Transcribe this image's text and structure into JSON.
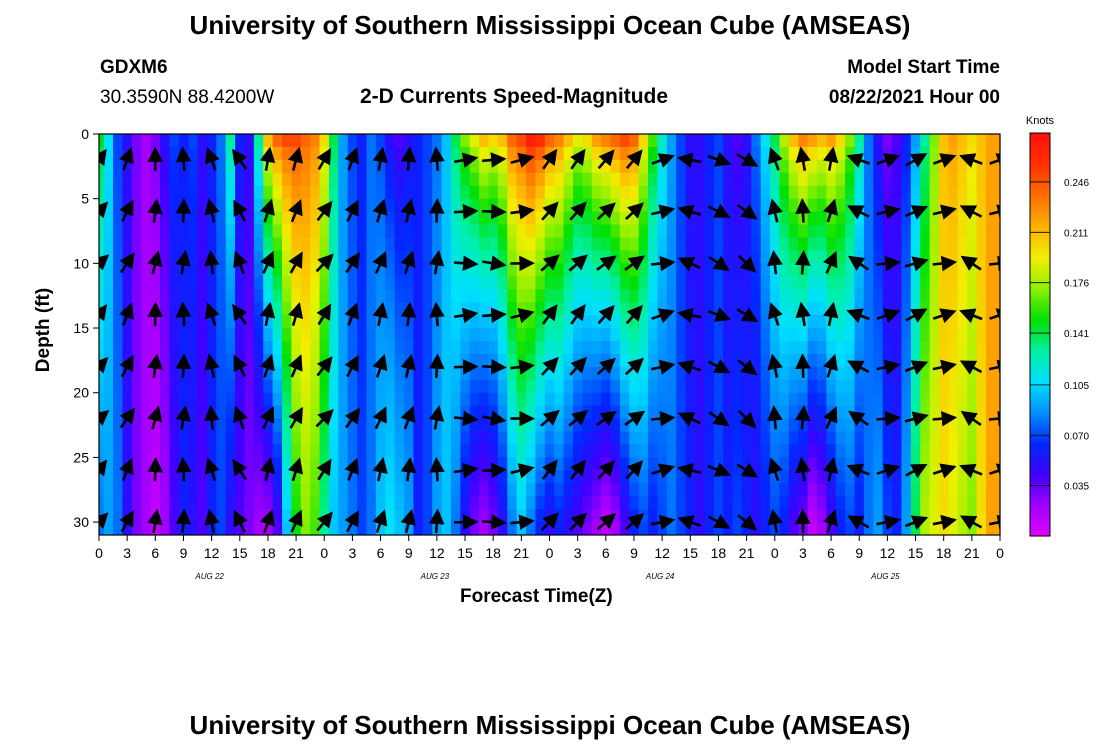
{
  "header": {
    "title_top": "University of Southern Mississippi Ocean Cube (AMSEAS)",
    "title_bottom": "University of Southern Mississippi Ocean Cube (AMSEAS)",
    "station_id": "GDXM6",
    "station_coords": "30.3590N  88.4200W",
    "plot_title": "2-D Currents Speed-Magnitude",
    "model_start_label": "Model Start Time",
    "model_start_value": "08/22/2021 Hour 00"
  },
  "colors": {
    "arrow": "#000000",
    "axis": "#000000",
    "background": "#ffffff"
  },
  "chart_data": {
    "type": "heatmap",
    "title": "2-D Currents Speed-Magnitude",
    "xlabel": "Forecast Time(Z)",
    "ylabel": "Depth (ft)",
    "x_tick_labels": [
      "0",
      "3",
      "6",
      "9",
      "12",
      "15",
      "18",
      "21",
      "0",
      "3",
      "6",
      "9",
      "12",
      "15",
      "18",
      "21",
      "0",
      "3",
      "6",
      "9",
      "12",
      "15",
      "18",
      "21",
      "0",
      "3",
      "6",
      "9",
      "12",
      "15",
      "18",
      "21",
      "0"
    ],
    "date_labels": [
      "AUG 22",
      "AUG 23",
      "AUG 24",
      "AUG 25"
    ],
    "xlim": [
      0,
      96
    ],
    "ylim": [
      0,
      31
    ],
    "y_ticks": [
      0,
      5,
      10,
      15,
      20,
      25,
      30
    ],
    "y_inverted": true,
    "colorbar": {
      "units": "Knots",
      "ticks": [
        "0.035",
        "0.070",
        "0.105",
        "0.141",
        "0.176",
        "0.211",
        "0.246"
      ],
      "range": [
        0,
        0.28
      ],
      "colors": [
        "#e000ff",
        "#a000ff",
        "#4000ff",
        "#0028ff",
        "#0090ff",
        "#00e0ff",
        "#00f0a0",
        "#00e000",
        "#90f000",
        "#f0f000",
        "#ffb000",
        "#ff7000",
        "#ff3000",
        "#ff1010"
      ]
    },
    "speed_profile_hours": [
      0,
      1,
      2,
      3,
      4,
      5,
      6,
      7,
      8,
      9,
      10,
      11,
      12,
      13,
      14,
      15,
      16,
      17,
      18,
      19,
      20,
      21,
      22,
      23,
      24,
      25,
      26,
      27,
      28,
      29,
      30,
      31,
      32,
      33,
      34,
      35,
      36,
      37,
      38,
      39,
      40,
      41,
      42,
      43,
      44,
      45,
      46,
      47,
      48,
      49,
      50,
      51,
      52,
      53,
      54,
      55,
      56,
      57,
      58,
      59,
      60,
      61,
      62,
      63,
      64,
      65,
      66,
      67,
      68,
      69,
      70,
      71,
      72,
      73,
      74,
      75,
      76,
      77,
      78,
      79,
      80,
      81,
      82,
      83,
      84,
      85,
      86,
      87,
      88,
      89,
      90,
      91,
      92,
      93,
      94,
      95,
      96
    ],
    "speed_surface_knots": [
      0.15,
      0.11,
      0.07,
      0.05,
      0.03,
      0.02,
      0.03,
      0.05,
      0.07,
      0.06,
      0.07,
      0.05,
      0.06,
      0.08,
      0.13,
      0.06,
      0.05,
      0.13,
      0.21,
      0.24,
      0.25,
      0.25,
      0.24,
      0.23,
      0.2,
      0.14,
      0.09,
      0.07,
      0.06,
      0.08,
      0.07,
      0.05,
      0.04,
      0.05,
      0.06,
      0.07,
      0.08,
      0.1,
      0.14,
      0.17,
      0.19,
      0.21,
      0.2,
      0.21,
      0.24,
      0.25,
      0.27,
      0.26,
      0.24,
      0.23,
      0.21,
      0.19,
      0.2,
      0.22,
      0.23,
      0.24,
      0.25,
      0.24,
      0.2,
      0.16,
      0.12,
      0.09,
      0.07,
      0.05,
      0.05,
      0.06,
      0.07,
      0.05,
      0.04,
      0.05,
      0.08,
      0.11,
      0.14,
      0.18,
      0.21,
      0.23,
      0.22,
      0.21,
      0.22,
      0.2,
      0.17,
      0.13,
      0.08,
      0.05,
      0.03,
      0.04,
      0.06,
      0.09,
      0.13,
      0.17,
      0.21,
      0.22,
      0.21,
      0.2,
      0.21,
      0.22,
      0.22
    ],
    "speed_bottom_knots": [
      0.08,
      0.09,
      0.08,
      0.05,
      0.03,
      0.02,
      0.01,
      0.02,
      0.04,
      0.06,
      0.05,
      0.04,
      0.06,
      0.07,
      0.05,
      0.04,
      0.03,
      0.02,
      0.02,
      0.04,
      0.1,
      0.15,
      0.17,
      0.16,
      0.13,
      0.1,
      0.09,
      0.08,
      0.07,
      0.08,
      0.1,
      0.11,
      0.1,
      0.09,
      0.06,
      0.07,
      0.09,
      0.1,
      0.08,
      0.05,
      0.03,
      0.02,
      0.03,
      0.05,
      0.08,
      0.1,
      0.08,
      0.06,
      0.05,
      0.06,
      0.05,
      0.04,
      0.03,
      0.02,
      0.01,
      0.02,
      0.04,
      0.06,
      0.07,
      0.06,
      0.07,
      0.08,
      0.07,
      0.06,
      0.05,
      0.06,
      0.07,
      0.06,
      0.07,
      0.06,
      0.05,
      0.06,
      0.07,
      0.06,
      0.04,
      0.03,
      0.01,
      0.02,
      0.04,
      0.06,
      0.07,
      0.06,
      0.08,
      0.09,
      0.07,
      0.06,
      0.09,
      0.14,
      0.18,
      0.19,
      0.2,
      0.19,
      0.18,
      0.17,
      0.2,
      0.22,
      0.22
    ],
    "vector_hours": [
      0,
      3,
      6,
      9,
      12,
      15,
      18,
      21,
      24,
      27,
      30,
      33,
      36,
      39,
      42,
      45,
      48,
      51,
      54,
      57,
      60,
      63,
      66,
      69,
      72,
      75,
      78,
      81,
      84,
      87,
      90,
      93,
      96
    ],
    "vector_depths_ft": [
      2,
      6,
      10,
      14,
      18,
      22,
      26,
      30
    ],
    "vector_directions_deg": [
      45,
      30,
      10,
      5,
      350,
      335,
      20,
      25,
      40,
      30,
      20,
      15,
      5,
      90,
      95,
      85,
      45,
      45,
      50,
      50,
      80,
      290,
      120,
      130,
      350,
      0,
      20,
      300,
      80,
      70,
      80,
      300,
      80
    ]
  }
}
